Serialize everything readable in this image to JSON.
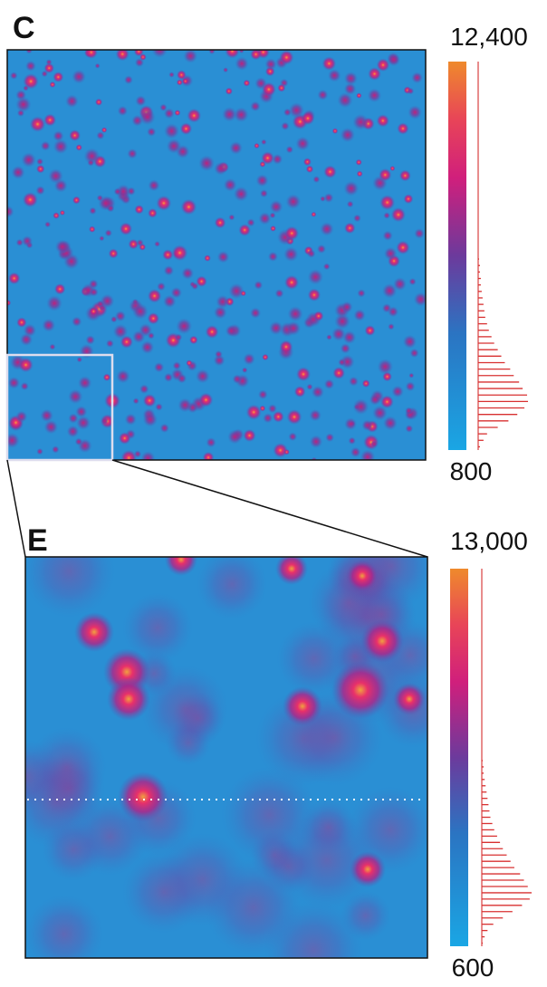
{
  "panels": [
    {
      "label": "C",
      "colorbar": {
        "max": {
          "value": 12400,
          "label": "12,400"
        },
        "min": 800
      },
      "histogram": [
        2,
        6,
        10,
        22,
        34,
        44,
        52,
        56,
        55,
        50,
        46,
        40,
        36,
        30,
        26,
        22,
        18,
        15,
        12,
        10,
        8,
        7,
        6,
        5,
        4,
        3,
        3,
        2,
        2,
        1
      ]
    },
    {
      "label": "E",
      "colorbar": {
        "max": {
          "value": 13000,
          "label": "13,000"
        },
        "min": 600
      },
      "histogram": [
        1,
        3,
        6,
        12,
        22,
        32,
        42,
        50,
        52,
        48,
        44,
        40,
        34,
        30,
        26,
        22,
        19,
        16,
        13,
        11,
        9,
        8,
        7,
        6,
        5,
        4,
        3,
        2,
        2,
        1
      ]
    }
  ]
}
